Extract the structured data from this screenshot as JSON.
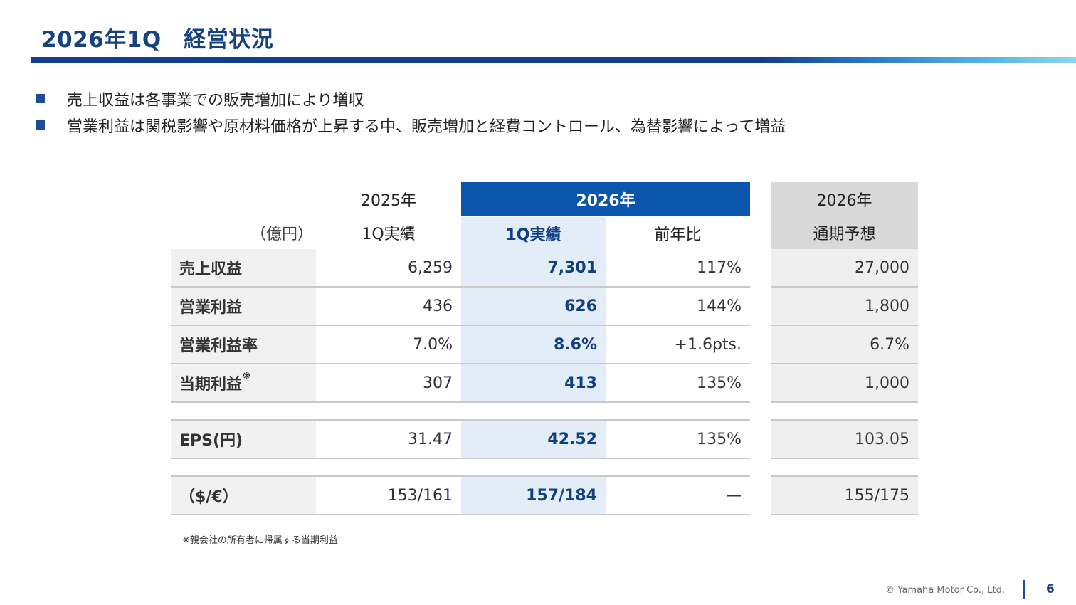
{
  "title": "2026年1Q　経営状況",
  "bullets": [
    "売上収益は各事業での販売増加により増収",
    "営業利益は関税影響や原材料価格が上昇する中、販売増加と経費コントロール、為替影響によって増益"
  ],
  "table": {
    "unit": "（億円）",
    "header_top": {
      "y2025": "2025年",
      "y2026": "2026年",
      "forecast_year": "2026年"
    },
    "header_sub": {
      "y2025": "1Q実績",
      "y2026": "1Q実績",
      "yoy": "前年比",
      "forecast": "通期予想"
    },
    "rows": [
      {
        "label": "売上収益",
        "v2025": "6,259",
        "v2026": "7,301",
        "yoy": "117%",
        "forecast": "27,000"
      },
      {
        "label": "営業利益",
        "v2025": "436",
        "v2026": "626",
        "yoy": "144%",
        "forecast": "1,800"
      },
      {
        "label": "営業利益率",
        "v2025": "7.0%",
        "v2026": "8.6%",
        "yoy": "+1.6pts.",
        "forecast": "6.7%"
      },
      {
        "label": "当期利益",
        "label_mark": "※",
        "v2025": "307",
        "v2026": "413",
        "yoy": "135%",
        "forecast": "1,000"
      }
    ],
    "eps": {
      "label": "EPS(円)",
      "v2025": "31.47",
      "v2026": "42.52",
      "yoy": "135%",
      "forecast": "103.05"
    },
    "fx": {
      "label": "（$/€）",
      "v2025": "153/161",
      "v2026": "157/184",
      "yoy": "—",
      "forecast": "155/175"
    }
  },
  "footnote": "※親会社の所有者に帰属する当期利益",
  "copyright": "© Yamaha Motor Co., Ltd.",
  "page_number": "6"
}
